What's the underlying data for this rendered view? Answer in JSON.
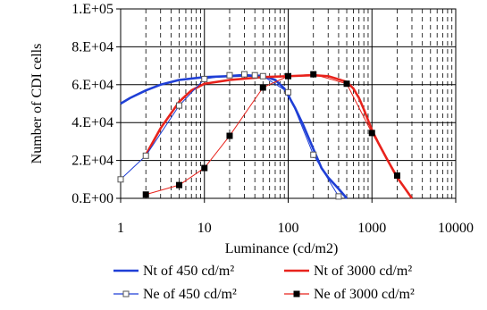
{
  "chart_data": {
    "type": "line",
    "xlabel": "Luminance (cd/m2)",
    "ylabel": "Number of CDI cells",
    "x_scale": "log",
    "xlim": [
      1,
      10000
    ],
    "ylim": [
      0,
      100000
    ],
    "x_ticks": [
      "1",
      "10",
      "100",
      "1000",
      "10000"
    ],
    "y_ticks": [
      "0.E+00",
      "2.E+04",
      "4.E+04",
      "6.E+04",
      "8.E+04",
      "1.E+05"
    ],
    "grid": "dashed vertical minor grid, solid major grid",
    "legend_position": "bottom",
    "series": [
      {
        "name": "Nt of 450 cd/m²",
        "color": "#1f3fd6",
        "marker": "none",
        "points": [
          [
            1,
            50000
          ],
          [
            1.3,
            53000
          ],
          [
            2,
            57000
          ],
          [
            3,
            60000
          ],
          [
            5,
            62500
          ],
          [
            10,
            64000
          ],
          [
            20,
            64500
          ],
          [
            30,
            64800
          ],
          [
            50,
            64700
          ],
          [
            70,
            62500
          ],
          [
            90,
            58000
          ],
          [
            120,
            48000
          ],
          [
            150,
            39000
          ],
          [
            200,
            26000
          ],
          [
            250,
            16000
          ],
          [
            300,
            11000
          ],
          [
            400,
            5000
          ],
          [
            500,
            0
          ]
        ]
      },
      {
        "name": "Nt of 3000 cd/m²",
        "color": "#e8231c",
        "marker": "none",
        "points": [
          [
            2,
            23000
          ],
          [
            3,
            37000
          ],
          [
            5,
            51000
          ],
          [
            7,
            57000
          ],
          [
            10,
            60500
          ],
          [
            20,
            62500
          ],
          [
            50,
            64000
          ],
          [
            100,
            64500
          ],
          [
            200,
            65000
          ],
          [
            300,
            64500
          ],
          [
            500,
            61500
          ],
          [
            600,
            58000
          ],
          [
            700,
            53000
          ],
          [
            800,
            47000
          ],
          [
            1000,
            36000
          ],
          [
            1200,
            29000
          ],
          [
            1500,
            21000
          ],
          [
            2000,
            11000
          ],
          [
            2500,
            5000
          ],
          [
            3000,
            0
          ]
        ]
      },
      {
        "name": "Ne of 450 cd/m²",
        "color": "#1f3fd6",
        "marker": "open-square",
        "points": [
          [
            1,
            10000
          ],
          [
            2,
            22500
          ],
          [
            5,
            49000
          ],
          [
            10,
            63000
          ],
          [
            20,
            65000
          ],
          [
            30,
            65500
          ],
          [
            40,
            65000
          ],
          [
            50,
            64500
          ],
          [
            100,
            56000
          ],
          [
            200,
            23000
          ],
          [
            400,
            1000
          ]
        ]
      },
      {
        "name": "Ne of 3000 cd/m²",
        "color": "#e8231c",
        "marker": "filled-square",
        "points": [
          [
            2,
            2000
          ],
          [
            5,
            7000
          ],
          [
            10,
            16000
          ],
          [
            20,
            33000
          ],
          [
            50,
            58500
          ],
          [
            100,
            64500
          ],
          [
            200,
            65500
          ],
          [
            500,
            60500
          ],
          [
            1000,
            34500
          ],
          [
            2000,
            12000
          ]
        ]
      }
    ]
  }
}
